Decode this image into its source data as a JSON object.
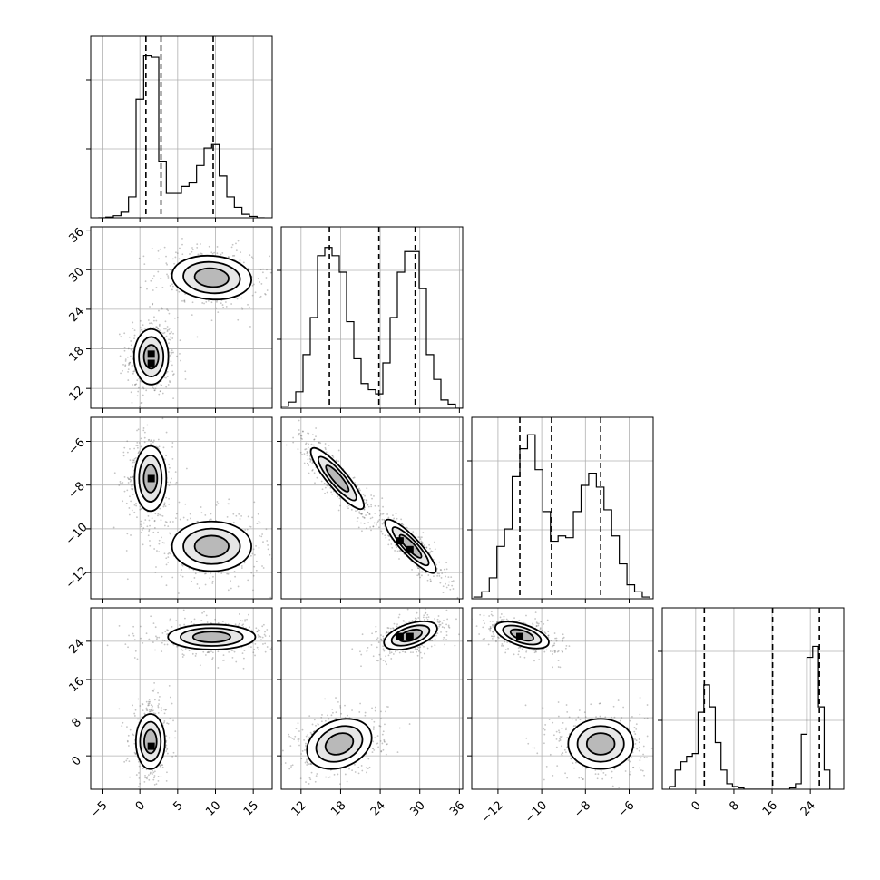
{
  "chart_data": {
    "type": "corner",
    "grid": true,
    "scatter_color": "#555555",
    "line_color": "#000000",
    "parameters": [
      {
        "index": 0,
        "axis_range": [
          -6.5,
          17.5
        ],
        "ticks": [
          -5,
          0,
          5,
          10,
          15
        ],
        "tick_labels": [
          "−5",
          "0",
          "5",
          "10",
          "15"
        ],
        "quantiles": [
          0.8,
          2.8,
          9.7
        ],
        "hist": {
          "edges": [
            -5.5,
            -4.5,
            -3.5,
            -2.5,
            -1.5,
            -0.5,
            0.5,
            1.5,
            2.5,
            3.5,
            4.5,
            5.5,
            6.5,
            7.5,
            8.5,
            9.5,
            10.5,
            11.5,
            12.5,
            13.5,
            14.5,
            15.5,
            16.5
          ],
          "counts": [
            0,
            1,
            3,
            8,
            30,
            170,
            232,
            230,
            80,
            35,
            35,
            45,
            50,
            75,
            100,
            105,
            60,
            30,
            15,
            5,
            2,
            0
          ],
          "ymax": 260
        }
      },
      {
        "index": 1,
        "axis_range": [
          9,
          36.5
        ],
        "ticks": [
          12,
          18,
          24,
          30,
          36
        ],
        "tick_labels": [
          "12",
          "18",
          "24",
          "30",
          "36"
        ],
        "quantiles": [
          16.3,
          23.8,
          29.3
        ],
        "hist": {
          "edges": [
            9,
            10.1,
            11.2,
            12.3,
            13.4,
            14.5,
            15.6,
            16.7,
            17.8,
            18.9,
            20,
            21.1,
            22.2,
            23.3,
            24.4,
            25.5,
            26.6,
            27.7,
            28.8,
            29.9,
            31,
            32.1,
            33.2,
            34.3,
            35.4,
            36.5
          ],
          "counts": [
            5,
            15,
            40,
            130,
            220,
            370,
            390,
            370,
            330,
            210,
            120,
            60,
            45,
            35,
            110,
            220,
            330,
            380,
            380,
            290,
            130,
            70,
            20,
            10,
            0
          ],
          "ymax": 440
        }
      },
      {
        "index": 2,
        "axis_range": [
          -13.2,
          -4.9
        ],
        "ticks": [
          -12,
          -10,
          -8,
          -6
        ],
        "tick_labels": [
          "−12",
          "−10",
          "−8",
          "−6"
        ],
        "quantiles": [
          -11.0,
          -9.55,
          -7.3
        ],
        "hist": {
          "edges": [
            -13.1,
            -12.75,
            -12.4,
            -12.05,
            -11.7,
            -11.35,
            -11.0,
            -10.65,
            -10.3,
            -9.95,
            -9.6,
            -9.25,
            -8.9,
            -8.55,
            -8.2,
            -7.85,
            -7.5,
            -7.15,
            -6.8,
            -6.45,
            -6.1,
            -5.75,
            -5.4,
            -5.05
          ],
          "counts": [
            5,
            20,
            60,
            150,
            200,
            350,
            430,
            470,
            370,
            250,
            165,
            180,
            175,
            250,
            325,
            360,
            320,
            255,
            180,
            100,
            40,
            20,
            5
          ],
          "ymax": 520
        }
      },
      {
        "index": 3,
        "axis_range": [
          -7,
          31
        ],
        "ticks": [
          0,
          8,
          16,
          24
        ],
        "tick_labels": [
          "0",
          "8",
          "16",
          "24"
        ],
        "quantiles": [
          1.8,
          16.1,
          25.9
        ],
        "hist": {
          "edges": [
            -5.5,
            -4.3,
            -3.1,
            -1.9,
            -0.7,
            0.5,
            1.7,
            2.9,
            4.1,
            5.3,
            6.5,
            7.7,
            8.9,
            10.1,
            11.3,
            12.5,
            13.7,
            14.9,
            16.1,
            17.3,
            18.5,
            19.7,
            20.9,
            22.1,
            23.3,
            24.5,
            25.7,
            26.9,
            28.1
          ],
          "counts": [
            10,
            70,
            100,
            120,
            130,
            280,
            380,
            300,
            170,
            70,
            20,
            10,
            5,
            0,
            0,
            0,
            0,
            0,
            0,
            0,
            0,
            5,
            20,
            200,
            480,
            520,
            300,
            70
          ],
          "ymax": 660
        }
      }
    ],
    "pairs": [
      {
        "row": 1,
        "col": 0,
        "clusters": [
          {
            "x": 1.5,
            "y": 16.8,
            "sx": 1.3,
            "sy": 2.4,
            "rho": 0.0,
            "n": 450
          },
          {
            "x": 9.5,
            "y": 28.8,
            "sx": 3.0,
            "sy": 1.9,
            "rho": -0.1,
            "n": 420
          }
        ],
        "peak_pixels": [
          [
            1.5,
            17.2
          ],
          [
            1.5,
            15.8
          ]
        ]
      },
      {
        "row": 2,
        "col": 0,
        "clusters": [
          {
            "x": 1.4,
            "y": -7.7,
            "sx": 1.2,
            "sy": 0.85,
            "rho": 0.0,
            "n": 450
          },
          {
            "x": 9.5,
            "y": -10.8,
            "sx": 3.0,
            "sy": 0.65,
            "rho": 0.0,
            "n": 420
          }
        ],
        "peak_pixels": [
          [
            1.5,
            -7.7
          ]
        ]
      },
      {
        "row": 2,
        "col": 1,
        "clusters": [
          {
            "x": 17.5,
            "y": -7.7,
            "sx": 2.3,
            "sy": 0.8,
            "rho": -0.88,
            "n": 450
          },
          {
            "x": 28.6,
            "y": -10.8,
            "sx": 2.2,
            "sy": 0.7,
            "rho": -0.88,
            "n": 420
          }
        ],
        "peak_pixels": [
          [
            27.0,
            -10.55
          ],
          [
            28.5,
            -10.95
          ]
        ]
      },
      {
        "row": 3,
        "col": 0,
        "clusters": [
          {
            "x": 1.4,
            "y": 3.0,
            "sx": 1.1,
            "sy": 3.3,
            "rho": 0.0,
            "n": 420
          },
          {
            "x": 9.5,
            "y": 24.9,
            "sx": 3.3,
            "sy": 1.5,
            "rho": 0.0,
            "n": 420
          }
        ],
        "peak_pixels": [
          [
            1.5,
            2.0
          ]
        ]
      },
      {
        "row": 3,
        "col": 1,
        "clusters": [
          {
            "x": 17.8,
            "y": 2.5,
            "sx": 2.8,
            "sy": 3.0,
            "rho": 0.25,
            "n": 420
          },
          {
            "x": 28.6,
            "y": 25.2,
            "sx": 2.3,
            "sy": 1.7,
            "rho": 0.5,
            "n": 420
          }
        ],
        "peak_pixels": [
          [
            27.0,
            25.0
          ],
          [
            28.5,
            25.0
          ]
        ]
      },
      {
        "row": 3,
        "col": 2,
        "clusters": [
          {
            "x": -10.9,
            "y": 25.3,
            "sx": 0.7,
            "sy": 1.6,
            "rho": -0.55,
            "n": 420
          },
          {
            "x": -7.3,
            "y": 2.5,
            "sx": 0.85,
            "sy": 3.0,
            "rho": 0.0,
            "n": 420
          }
        ],
        "peak_pixels": [
          [
            -11.0,
            25.0
          ]
        ]
      }
    ]
  }
}
